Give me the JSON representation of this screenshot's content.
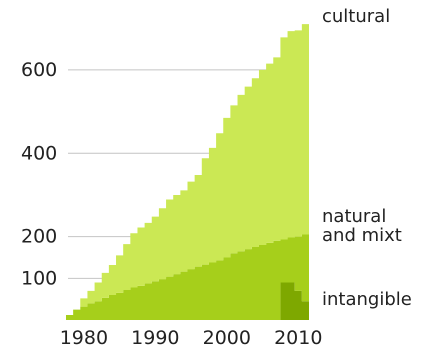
{
  "chart_data": {
    "type": "area",
    "stacked": true,
    "x": [
      1978,
      1979,
      1980,
      1981,
      1982,
      1983,
      1984,
      1985,
      1986,
      1987,
      1988,
      1989,
      1990,
      1991,
      1992,
      1993,
      1994,
      1995,
      1996,
      1997,
      1998,
      1999,
      2000,
      2001,
      2002,
      2003,
      2004,
      2005,
      2006,
      2007,
      2008,
      2009,
      2010,
      2011
    ],
    "series": [
      {
        "name": "intangible",
        "color": "#7ea800",
        "values": [
          0,
          0,
          0,
          0,
          0,
          0,
          0,
          0,
          0,
          0,
          0,
          0,
          0,
          0,
          0,
          0,
          0,
          0,
          0,
          0,
          0,
          0,
          0,
          0,
          0,
          0,
          0,
          0,
          0,
          0,
          90,
          90,
          70,
          45
        ]
      },
      {
        "name": "natural and mixt",
        "color": "#a6cf1b",
        "values": [
          12,
          25,
          32,
          40,
          45,
          53,
          60,
          65,
          72,
          78,
          82,
          88,
          93,
          98,
          104,
          110,
          116,
          122,
          128,
          133,
          138,
          143,
          150,
          160,
          165,
          170,
          175,
          180,
          185,
          190,
          103,
          108,
          130,
          160
        ]
      },
      {
        "name": "cultural",
        "color": "#cbe854",
        "values": [
          0,
          0,
          20,
          30,
          45,
          60,
          72,
          90,
          110,
          130,
          140,
          145,
          155,
          170,
          185,
          190,
          195,
          210,
          220,
          255,
          275,
          305,
          335,
          355,
          375,
          390,
          405,
          420,
          430,
          440,
          485,
          495,
          495,
          505
        ]
      }
    ],
    "label_lines": {
      "cultural": [
        "cultural"
      ],
      "natural and mixt": [
        "natural",
        "and mixt"
      ],
      "intangible": [
        "intangible"
      ]
    },
    "xticks": [
      "1980",
      "1990",
      "2000",
      "2010"
    ],
    "xtick_values": [
      1980,
      1990,
      2000,
      2010
    ],
    "yticks": [
      "100",
      "200",
      "400",
      "600"
    ],
    "ytick_values": [
      100,
      200,
      400,
      600
    ],
    "xlim": [
      1978,
      2012
    ],
    "ylim": [
      0,
      700
    ],
    "grid": "horizontal lines at y ticks",
    "legend": "labels at right of chart",
    "title": "",
    "xlabel": "",
    "ylabel": ""
  }
}
